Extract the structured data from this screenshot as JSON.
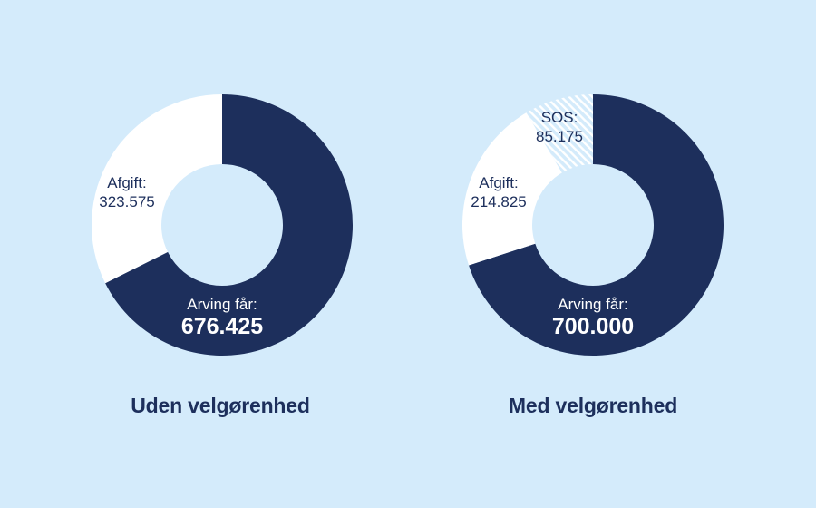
{
  "colors": {
    "background": "#d4ebfb",
    "arving": "#1d2f5c",
    "afgift": "#ffffff",
    "sos_hatch": "#b9dcf5",
    "text_dark": "#1d2f5c",
    "text_light": "#ffffff"
  },
  "charts": [
    {
      "caption": "Uden velgørenhed",
      "slices": [
        {
          "key": "arving",
          "label": "Arving får:",
          "value_text": "676.425"
        },
        {
          "key": "afgift",
          "label": "Afgift:",
          "value_text": "323.575"
        }
      ]
    },
    {
      "caption": "Med velgørenhed",
      "slices": [
        {
          "key": "arving",
          "label": "Arving får:",
          "value_text": "700.000"
        },
        {
          "key": "afgift",
          "label": "Afgift:",
          "value_text": "214.825"
        },
        {
          "key": "sos",
          "label": "SOS:",
          "value_text": "85.175"
        }
      ]
    }
  ],
  "chart_data": [
    {
      "type": "pie",
      "variant": "donut",
      "title": "Uden velgørenhed",
      "categories": [
        "Arving får",
        "Afgift"
      ],
      "values": [
        676425,
        323575
      ],
      "total": 1000000,
      "start_angle": "12 o'clock, clockwise",
      "legend": "none (inline labels)"
    },
    {
      "type": "pie",
      "variant": "donut",
      "title": "Med velgørenhed",
      "categories": [
        "Arving får",
        "Afgift",
        "SOS"
      ],
      "values": [
        700000,
        214825,
        85175
      ],
      "total": 1000000,
      "start_angle": "12 o'clock, clockwise",
      "legend": "none (inline labels)"
    }
  ]
}
